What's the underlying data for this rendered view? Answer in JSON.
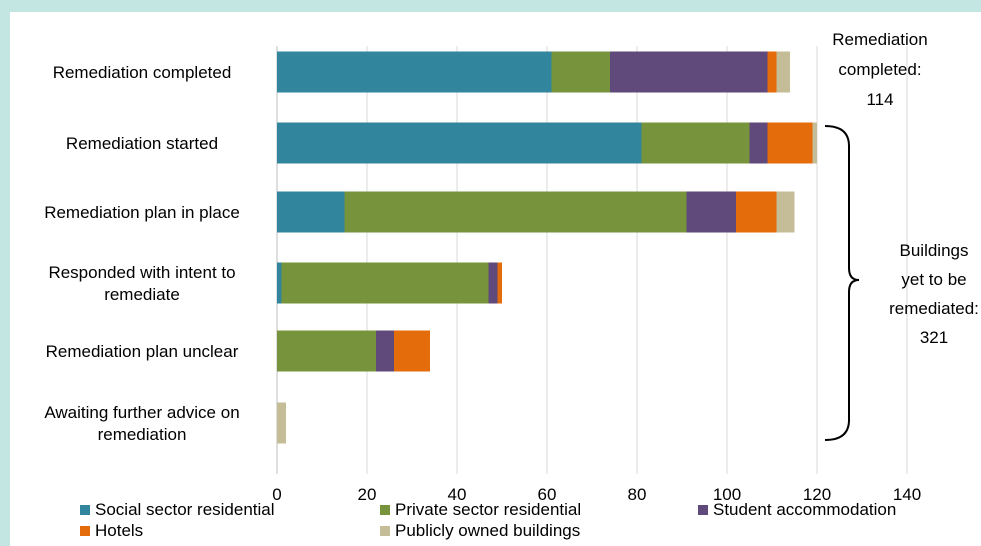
{
  "chart_data": {
    "type": "bar",
    "orientation": "horizontal",
    "stacked": true,
    "categories": [
      "Remediation completed",
      "Remediation started",
      "Remediation plan in place",
      "Responded with intent to remediate",
      "Remediation plan unclear",
      "Awaiting further advice on remediation"
    ],
    "category_lines": [
      [
        "Remediation completed"
      ],
      [
        "Remediation started"
      ],
      [
        "Remediation plan in place"
      ],
      [
        "Responded with intent to",
        "remediate"
      ],
      [
        "Remediation plan unclear"
      ],
      [
        "Awaiting further advice on",
        "remediation"
      ]
    ],
    "series": [
      {
        "name": "Social sector residential",
        "color": "#31859c",
        "values": [
          61,
          81,
          15,
          1,
          0,
          0
        ]
      },
      {
        "name": "Private sector residential",
        "color": "#77933c",
        "values": [
          13,
          24,
          76,
          46,
          22,
          0
        ]
      },
      {
        "name": "Student accommodation",
        "color": "#604a7b",
        "values": [
          35,
          4,
          11,
          2,
          4,
          0
        ]
      },
      {
        "name": "Hotels",
        "color": "#e46c0a",
        "values": [
          2,
          10,
          9,
          1,
          8,
          0
        ]
      },
      {
        "name": "Publicly owned buildings",
        "color": "#c4bd97",
        "values": [
          3,
          1,
          4,
          0,
          0,
          2
        ]
      }
    ],
    "xlim": [
      0,
      140
    ],
    "xticks": [
      0,
      20,
      40,
      60,
      80,
      100,
      120,
      140
    ],
    "xgrid": true,
    "legend_position": "bottom",
    "annotations": {
      "completed_lines": [
        "Remediation",
        "completed:",
        "114"
      ],
      "yet_lines": [
        "Buildings",
        "yet to be",
        "remediated:",
        "321"
      ]
    }
  }
}
